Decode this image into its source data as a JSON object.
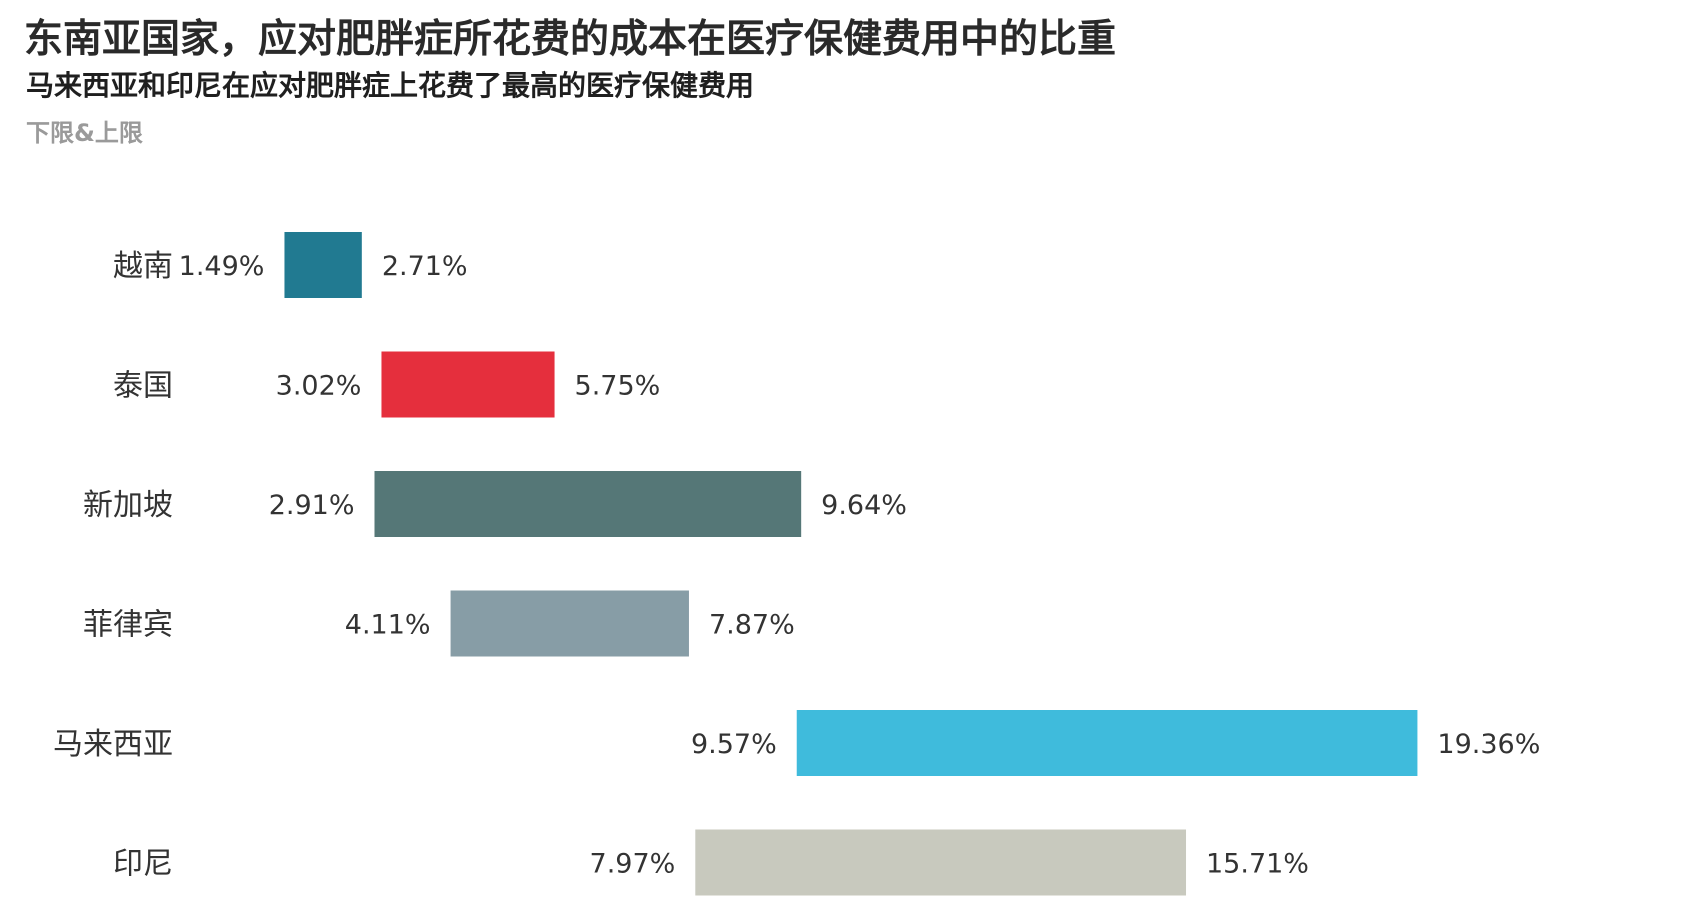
{
  "header": {
    "title": "东南亚国家，应对肥胖症所花费的成本在医疗保健费用中的比重",
    "subtitle": "马来西亚和印尼在应对肥胖症上花费了最高的医疗保健费用",
    "note": "下限&上限"
  },
  "chart_data": {
    "type": "bar",
    "orientation": "horizontal-range",
    "title": "东南亚国家，应对肥胖症所花费的成本在医疗保健费用中的比重",
    "subtitle": "马来西亚和印尼在应对肥胖症上花费了最高的医疗保健费用",
    "legend_note": "下限&上限",
    "xlabel": "",
    "ylabel": "",
    "grid": false,
    "xlim": [
      0,
      20
    ],
    "categories": [
      "越南",
      "泰国",
      "新加坡",
      "菲律宾",
      "马来西亚",
      "印尼"
    ],
    "series": [
      {
        "name": "下限",
        "values": [
          1.49,
          3.02,
          2.91,
          4.11,
          9.57,
          7.97
        ],
        "labels": [
          "1.49%",
          "3.02%",
          "2.91%",
          "4.11%",
          "9.57%",
          "7.97%"
        ]
      },
      {
        "name": "上限",
        "values": [
          2.71,
          5.75,
          9.64,
          7.87,
          19.36,
          15.71
        ],
        "labels": [
          "2.71%",
          "5.75%",
          "9.64%",
          "7.87%",
          "19.36%",
          "15.71%"
        ]
      }
    ],
    "colors": [
      "#217a91",
      "#e52f3d",
      "#557777",
      "#879da6",
      "#3fbbdc",
      "#c8c9be"
    ]
  }
}
